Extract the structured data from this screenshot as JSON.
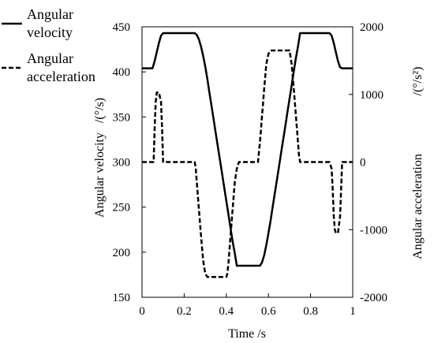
{
  "chart_data": {
    "type": "line",
    "xlabel": "Time   /s",
    "ylabel_left": "Angular velocity",
    "ylabel_left_unit": "/(°/s)",
    "ylabel_right": "Angular acceleration",
    "ylabel_right_unit": "/(°/s²)",
    "xlim": [
      0,
      1
    ],
    "ylim_left": [
      150,
      450
    ],
    "ylim_right": [
      -2000,
      2000
    ],
    "x_ticks": [
      "0",
      "0.2",
      "0.4",
      "0.6",
      "0.8",
      "1"
    ],
    "y_left_ticks": [
      "150",
      "200",
      "250",
      "300",
      "350",
      "400",
      "450"
    ],
    "y_right_ticks": [
      "-2000",
      "-1000",
      "0",
      "1000",
      "2000"
    ],
    "grid": false,
    "legend_position": "top-left",
    "series": [
      {
        "name": "Angular velocity",
        "axis": "left",
        "style": "solid",
        "x": [
          0,
          0.05,
          0.06,
          0.07,
          0.08,
          0.09,
          0.1,
          0.11,
          0.25,
          0.26,
          0.27,
          0.28,
          0.29,
          0.3,
          0.31,
          0.32,
          0.33,
          0.34,
          0.35,
          0.36,
          0.37,
          0.38,
          0.39,
          0.4,
          0.41,
          0.42,
          0.43,
          0.44,
          0.45,
          0.56,
          0.57,
          0.58,
          0.59,
          0.6,
          0.61,
          0.62,
          0.63,
          0.64,
          0.65,
          0.66,
          0.67,
          0.68,
          0.69,
          0.7,
          0.71,
          0.72,
          0.73,
          0.74,
          0.75,
          0.89,
          0.9,
          0.91,
          0.92,
          0.93,
          0.94,
          0.95,
          1
        ],
        "y": [
          404,
          404,
          412,
          422,
          432,
          440,
          443,
          443,
          443,
          441,
          436,
          428,
          418,
          406,
          392,
          377,
          362,
          347,
          332,
          317,
          302,
          287,
          272,
          257,
          242,
          227,
          212,
          199,
          185,
          185,
          189,
          197,
          208,
          221,
          235,
          250,
          265,
          280,
          295,
          310,
          325,
          340,
          355,
          370,
          385,
          400,
          415,
          428,
          443,
          443,
          440,
          432,
          422,
          412,
          405,
          404,
          404
        ]
      },
      {
        "name": "Angular acceleration",
        "axis": "right",
        "style": "dashed",
        "x": [
          0,
          0.055,
          0.06,
          0.065,
          0.07,
          0.08,
          0.085,
          0.09,
          0.095,
          0.1,
          0.25,
          0.255,
          0.26,
          0.27,
          0.28,
          0.29,
          0.3,
          0.31,
          0.4,
          0.405,
          0.41,
          0.42,
          0.43,
          0.44,
          0.45,
          0.46,
          0.55,
          0.56,
          0.57,
          0.58,
          0.59,
          0.6,
          0.61,
          0.7,
          0.71,
          0.72,
          0.73,
          0.74,
          0.745,
          0.75,
          0.89,
          0.9,
          0.905,
          0.91,
          0.915,
          0.92,
          0.93,
          0.94,
          0.945,
          0.95,
          1
        ],
        "y": [
          0,
          0,
          500,
          900,
          1030,
          1030,
          960,
          900,
          500,
          0,
          0,
          -100,
          -300,
          -700,
          -1100,
          -1450,
          -1650,
          -1700,
          -1700,
          -1650,
          -1500,
          -1100,
          -700,
          -300,
          -100,
          0,
          0,
          300,
          700,
          1100,
          1450,
          1600,
          1650,
          1650,
          1450,
          1100,
          700,
          300,
          100,
          0,
          0,
          -100,
          -400,
          -800,
          -1000,
          -1050,
          -1050,
          -800,
          -400,
          0,
          0
        ]
      }
    ]
  }
}
